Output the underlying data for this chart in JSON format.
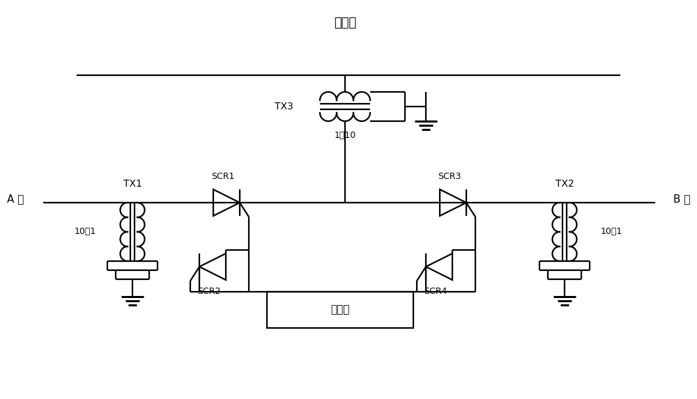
{
  "title": "中性段",
  "bg_color": "#ffffff",
  "line_color": "#000000",
  "labels": {
    "A_phase": "A 相",
    "B_phase": "B 相",
    "TX1": "TX1",
    "TX2": "TX2",
    "TX3": "TX3",
    "SCR1": "SCR1",
    "SCR2": "SCR2",
    "SCR3": "SCR3",
    "SCR4": "SCR4",
    "ratio_tx1": "10：1",
    "ratio_tx2": "10：1",
    "ratio_tx3": "1：10",
    "controller": "控制器"
  },
  "figsize": [
    10.0,
    5.73
  ],
  "dpi": 100
}
